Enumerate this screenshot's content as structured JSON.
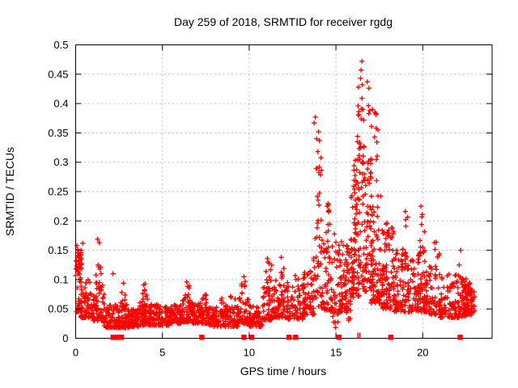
{
  "window": {
    "background": "#ffffff"
  },
  "colors": {
    "marker": "#ff0000",
    "border": "#000000",
    "grid": "#b3b3b3",
    "text": "#000000"
  },
  "chart_data": {
    "type": "scatter",
    "title": "Day 259 of 2018, SRMTID for receiver rgdg",
    "xlabel": "GPS time / hours",
    "ylabel": "SRMTID / TECUs",
    "xlim": [
      0,
      24
    ],
    "ylim": [
      0,
      0.5
    ],
    "xtick_values": [
      0,
      5,
      10,
      15,
      20
    ],
    "xtick_labels": [
      "0",
      "5",
      "10",
      "15",
      "20"
    ],
    "ytick_values": [
      0,
      0.05,
      0.1,
      0.15,
      0.2,
      0.25,
      0.3,
      0.35,
      0.4,
      0.45,
      0.5
    ],
    "ytick_labels": [
      "0",
      "0.05",
      "0.1",
      "0.15",
      "0.2",
      "0.25",
      "0.3",
      "0.35",
      "0.4",
      "0.45",
      "0.5"
    ],
    "grid": true,
    "legend": "none",
    "marker": "plus",
    "marker_color": "#ff0000",
    "clusters": [
      [
        0.0,
        0.35,
        48,
        0.045,
        0.155,
        1.5
      ],
      [
        0.02,
        0.3,
        10,
        0.1,
        0.148,
        1.0
      ],
      [
        0.3,
        1.0,
        65,
        0.035,
        0.1,
        2.0
      ],
      [
        1.0,
        1.65,
        55,
        0.03,
        0.095,
        2.0
      ],
      [
        1.15,
        1.55,
        13,
        0.08,
        0.128,
        1.0
      ],
      [
        1.6,
        3.05,
        130,
        0.018,
        0.058,
        1.7
      ],
      [
        2.55,
        2.9,
        12,
        0.05,
        0.08,
        1.1
      ],
      [
        3.0,
        3.65,
        75,
        0.02,
        0.05,
        1.7
      ],
      [
        3.6,
        4.35,
        80,
        0.022,
        0.062,
        1.7
      ],
      [
        3.85,
        4.15,
        11,
        0.055,
        0.092,
        1.1
      ],
      [
        4.3,
        5.45,
        90,
        0.022,
        0.06,
        1.8
      ],
      [
        5.4,
        6.1,
        65,
        0.025,
        0.058,
        1.7
      ],
      [
        6.1,
        6.75,
        58,
        0.028,
        0.068,
        1.7
      ],
      [
        6.25,
        6.55,
        8,
        0.06,
        0.094,
        1.1
      ],
      [
        6.7,
        7.65,
        68,
        0.025,
        0.06,
        1.8
      ],
      [
        7.25,
        7.55,
        8,
        0.055,
        0.082,
        1.1
      ],
      [
        7.6,
        9.35,
        135,
        0.02,
        0.055,
        1.7
      ],
      [
        8.3,
        9.3,
        9,
        0.05,
        0.075,
        1.1
      ],
      [
        9.35,
        10.05,
        55,
        0.025,
        0.07,
        1.7
      ],
      [
        9.55,
        9.85,
        8,
        0.06,
        0.105,
        1.1
      ],
      [
        10.0,
        10.75,
        58,
        0.02,
        0.055,
        1.7
      ],
      [
        10.75,
        11.45,
        50,
        0.03,
        0.09,
        1.6
      ],
      [
        10.95,
        11.35,
        11,
        0.075,
        0.136,
        1.05
      ],
      [
        11.4,
        12.25,
        62,
        0.035,
        0.1,
        1.7
      ],
      [
        11.8,
        12.0,
        6,
        0.1,
        0.131,
        1.0
      ],
      [
        12.2,
        13.25,
        75,
        0.032,
        0.092,
        1.7
      ],
      [
        12.6,
        13.2,
        7,
        0.09,
        0.115,
        1.0
      ],
      [
        13.2,
        13.75,
        45,
        0.04,
        0.12,
        1.6
      ],
      [
        13.7,
        14.25,
        36,
        0.05,
        0.19,
        1.35
      ],
      [
        13.72,
        14.2,
        14,
        0.19,
        0.31,
        1.0
      ],
      [
        14.25,
        15.35,
        85,
        0.045,
        0.17,
        1.8
      ],
      [
        14.35,
        14.95,
        9,
        0.17,
        0.23,
        1.0
      ],
      [
        14.8,
        15.15,
        9,
        0.018,
        0.05,
        1.2
      ],
      [
        15.3,
        15.85,
        58,
        0.05,
        0.16,
        1.7
      ],
      [
        15.6,
        15.85,
        7,
        0.03,
        0.05,
        1.0
      ],
      [
        15.85,
        16.35,
        80,
        0.07,
        0.27,
        1.5
      ],
      [
        16.0,
        16.3,
        12,
        0.25,
        0.31,
        1.0
      ],
      [
        16.3,
        17.1,
        100,
        0.08,
        0.33,
        1.5
      ],
      [
        16.2,
        16.95,
        10,
        0.33,
        0.41,
        1.0
      ],
      [
        17.0,
        17.6,
        78,
        0.06,
        0.25,
        1.6
      ],
      [
        17.15,
        17.5,
        7,
        0.26,
        0.385,
        1.0
      ],
      [
        17.55,
        18.35,
        85,
        0.05,
        0.185,
        1.6
      ],
      [
        17.8,
        18.3,
        9,
        0.16,
        0.21,
        1.0
      ],
      [
        18.35,
        19.05,
        72,
        0.045,
        0.155,
        1.7
      ],
      [
        18.95,
        19.15,
        7,
        0.13,
        0.21,
        1.0
      ],
      [
        19.1,
        19.75,
        55,
        0.045,
        0.14,
        1.7
      ],
      [
        19.7,
        20.25,
        55,
        0.045,
        0.15,
        1.7
      ],
      [
        19.8,
        20.1,
        6,
        0.15,
        0.225,
        1.0
      ],
      [
        20.2,
        21.05,
        62,
        0.04,
        0.125,
        1.7
      ],
      [
        20.5,
        21.0,
        7,
        0.12,
        0.165,
        1.0
      ],
      [
        21.0,
        22.05,
        80,
        0.035,
        0.11,
        1.7
      ],
      [
        22.0,
        22.55,
        62,
        0.035,
        0.105,
        1.6
      ],
      [
        22.4,
        22.85,
        55,
        0.04,
        0.095,
        1.5
      ],
      [
        22.8,
        23.1,
        10,
        0.045,
        0.08,
        1.4
      ]
    ],
    "outliers": [
      [
        0.07,
        0.158
      ],
      [
        0.4,
        0.162
      ],
      [
        1.26,
        0.169
      ],
      [
        1.36,
        0.163
      ],
      [
        2.15,
        0.11
      ],
      [
        2.75,
        0.094
      ],
      [
        4.0,
        0.093
      ],
      [
        6.4,
        0.096
      ],
      [
        9.7,
        0.105
      ],
      [
        11.05,
        0.136
      ],
      [
        11.15,
        0.128
      ],
      [
        11.85,
        0.138
      ],
      [
        13.74,
        0.367
      ],
      [
        13.81,
        0.377
      ],
      [
        13.89,
        0.34
      ],
      [
        14.0,
        0.352
      ],
      [
        14.05,
        0.337
      ],
      [
        13.95,
        0.318
      ],
      [
        14.5,
        0.225
      ],
      [
        14.6,
        0.218
      ],
      [
        16.5,
        0.472
      ],
      [
        16.45,
        0.457
      ],
      [
        16.42,
        0.443
      ],
      [
        16.3,
        0.428
      ],
      [
        16.52,
        0.432
      ],
      [
        16.8,
        0.437
      ],
      [
        16.9,
        0.426
      ],
      [
        16.5,
        0.409
      ],
      [
        16.27,
        0.396
      ],
      [
        16.55,
        0.39
      ],
      [
        16.95,
        0.388
      ],
      [
        17.1,
        0.39
      ],
      [
        17.25,
        0.385
      ],
      [
        16.45,
        0.374
      ],
      [
        17.05,
        0.361
      ],
      [
        17.3,
        0.383
      ],
      [
        17.32,
        0.358
      ],
      [
        16.35,
        0.334
      ],
      [
        19.0,
        0.216
      ],
      [
        19.9,
        0.225
      ],
      [
        19.95,
        0.207
      ],
      [
        22.05,
        0.107
      ],
      [
        22.1,
        0.125
      ],
      [
        22.19,
        0.15
      ]
    ],
    "zero_markers": [
      2.16,
      2.42,
      2.63,
      7.27,
      9.7,
      10.15,
      12.3,
      12.68,
      15.18,
      18.16,
      22.16
    ],
    "zero_bars": [
      16.26,
      16.38
    ]
  }
}
